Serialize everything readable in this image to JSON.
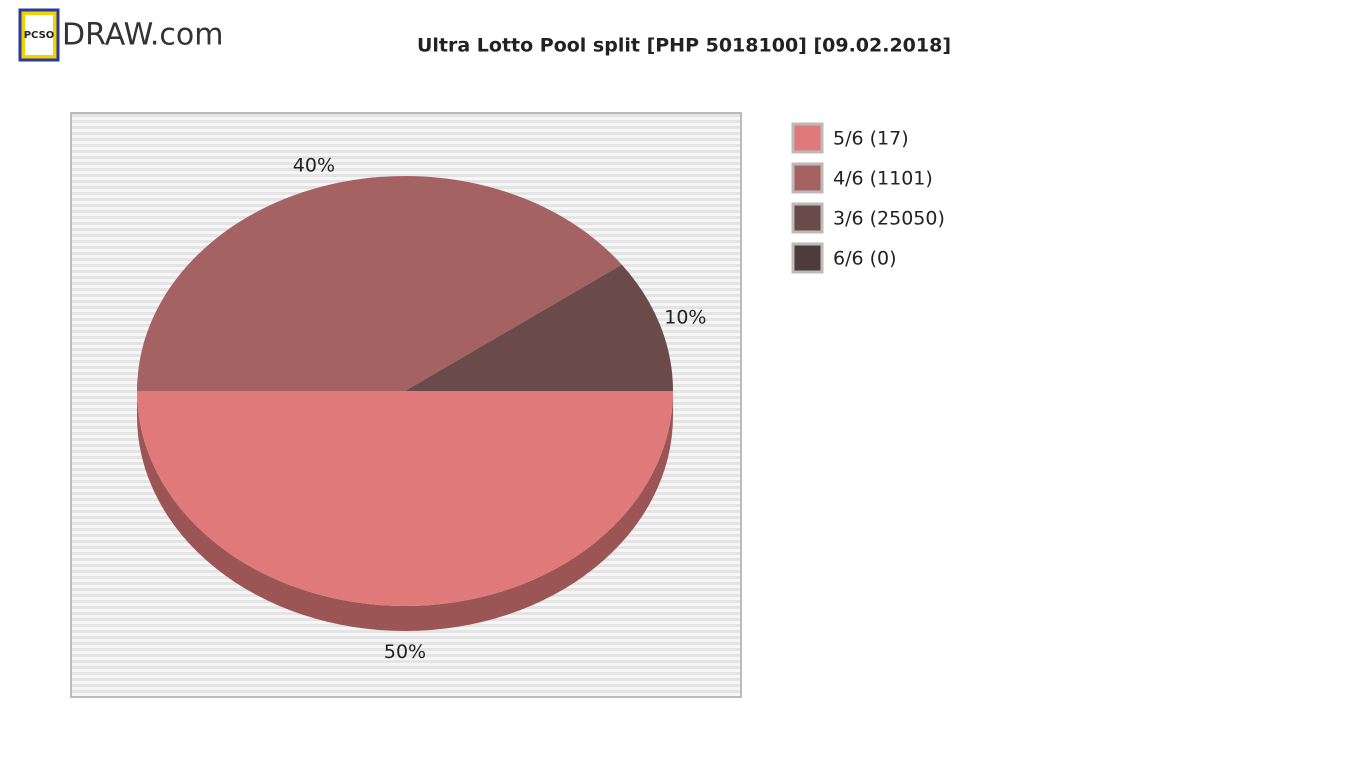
{
  "logo": {
    "badge": "PCSO",
    "text": "DRAW.com"
  },
  "chart_data": {
    "type": "pie",
    "title": "Ultra Lotto Pool split [PHP 5018100] [09.02.2018]",
    "series": [
      {
        "name": "5/6 (17)",
        "color": "#e07a7a",
        "side_color": "#9c5555",
        "values": [
          50
        ],
        "value_labels": [
          "50%"
        ]
      },
      {
        "name": "4/6 (1101)",
        "color": "#a46262",
        "side_color": "#7a4545",
        "values": [
          40
        ],
        "value_labels": [
          "40%"
        ]
      },
      {
        "name": "3/6 (25050)",
        "color": "#6b4a4a",
        "side_color": "#4f3636",
        "values": [
          10
        ],
        "value_labels": [
          "10%"
        ]
      },
      {
        "name": "6/6 (0)",
        "color": "#4e3c3c",
        "side_color": "#3a2c2c",
        "values": [
          0
        ],
        "value_labels": [
          null
        ]
      }
    ],
    "legend": "right"
  }
}
